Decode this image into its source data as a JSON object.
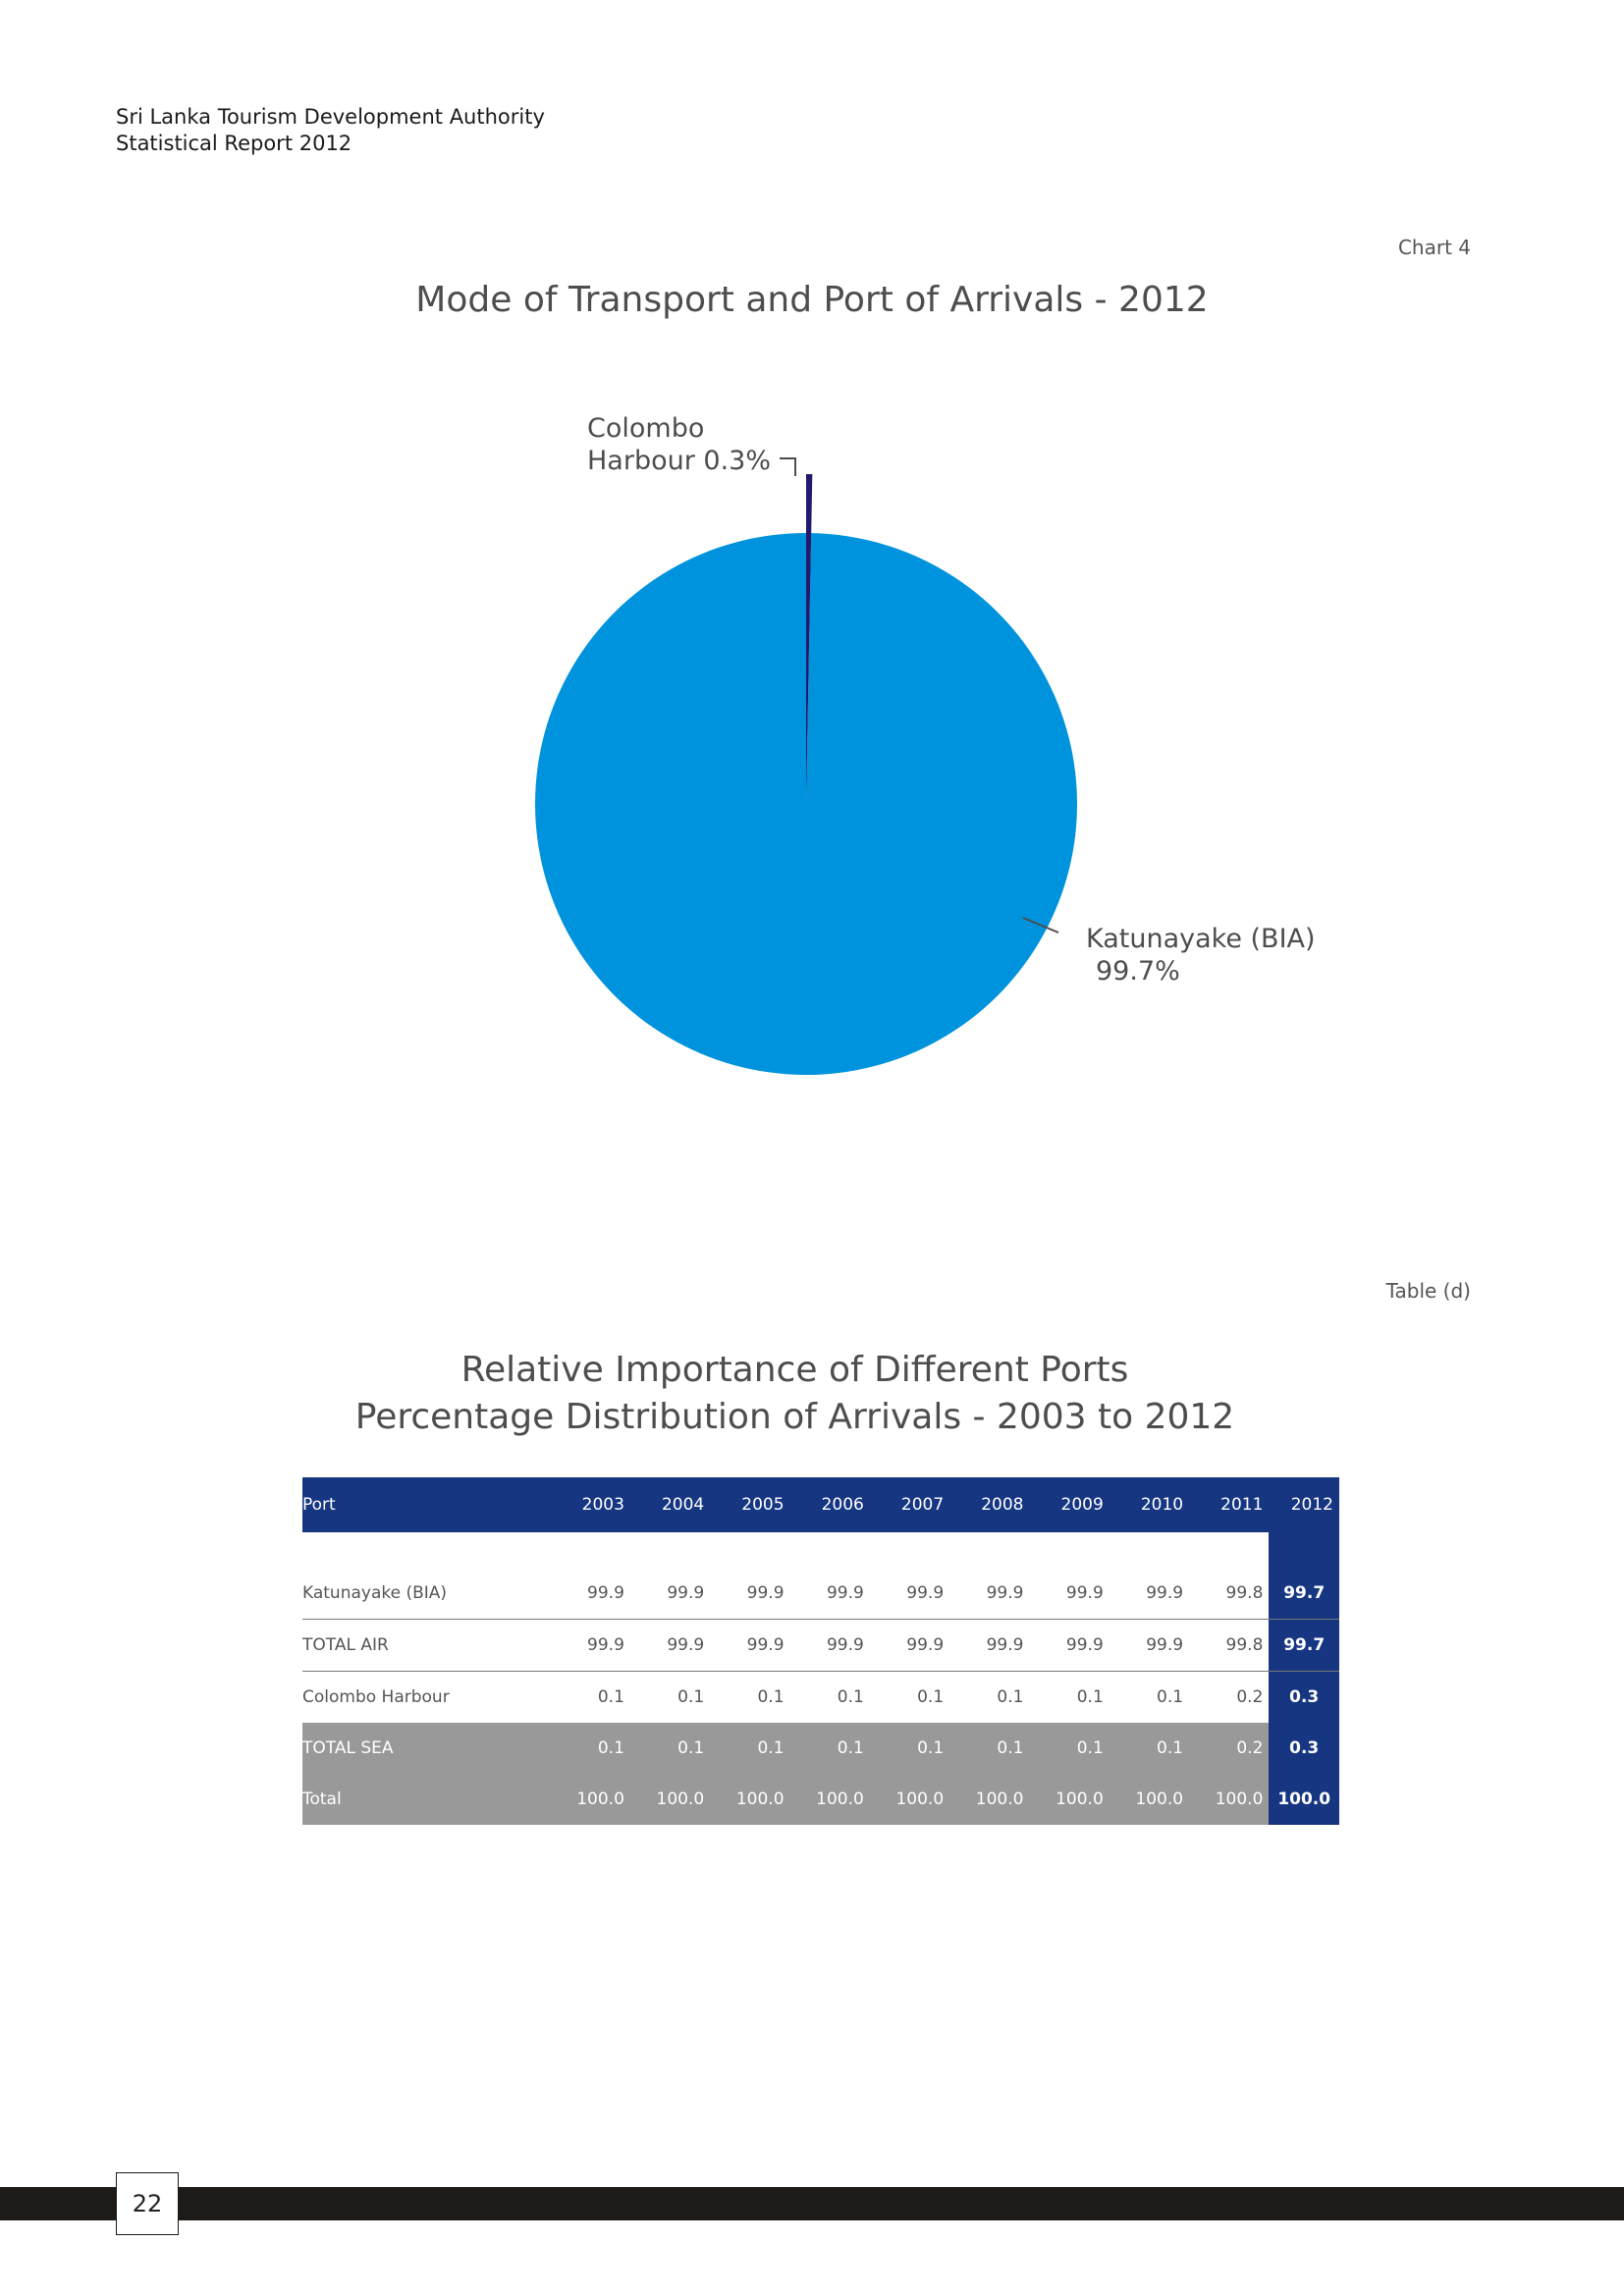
{
  "header": {
    "line1": "Sri Lanka Tourism Development Authority",
    "line2": "Statistical Report 2012"
  },
  "chart_ref": "Chart 4",
  "chart_data": [
    {
      "type": "pie",
      "title": "Mode of Transport and Port of Arrivals - 2012",
      "slices": [
        {
          "label_line1": "Colombo",
          "label_line2": "Harbour 0.3%",
          "value": 0.3,
          "color": "#221a6e"
        },
        {
          "label_line1": "Katunayake (BIA)",
          "label_line2": "99.7%",
          "value": 99.7,
          "color": "#0093dd"
        }
      ]
    },
    {
      "type": "table",
      "title_line1": "Relative Importance of Different Ports",
      "title_line2": "Percentage Distribution of Arrivals - 2003 to 2012",
      "columns": [
        "Port",
        "2003",
        "2004",
        "2005",
        "2006",
        "2007",
        "2008",
        "2009",
        "2010",
        "2011",
        "2012"
      ],
      "rows": [
        [
          "Katunayake (BIA)",
          "99.9",
          "99.9",
          "99.9",
          "99.9",
          "99.9",
          "99.9",
          "99.9",
          "99.9",
          "99.8",
          "99.7"
        ],
        [
          "TOTAL AIR",
          "99.9",
          "99.9",
          "99.9",
          "99.9",
          "99.9",
          "99.9",
          "99.9",
          "99.9",
          "99.8",
          "99.7"
        ],
        [
          "Colombo Harbour",
          "0.1",
          "0.1",
          "0.1",
          "0.1",
          "0.1",
          "0.1",
          "0.1",
          "0.1",
          "0.2",
          "0.3"
        ],
        [
          "TOTAL  SEA",
          "0.1",
          "0.1",
          "0.1",
          "0.1",
          "0.1",
          "0.1",
          "0.1",
          "0.1",
          "0.2",
          "0.3"
        ],
        [
          "Total",
          "100.0",
          "100.0",
          "100.0",
          "100.0",
          "100.0",
          "100.0",
          "100.0",
          "100.0",
          "100.0",
          "100.0"
        ]
      ]
    }
  ],
  "table_ref": "Table (d)",
  "page_number": "22",
  "colors": {
    "header_blue": "#173682",
    "total_grey": "#999999",
    "footer": "#1e1a17"
  }
}
